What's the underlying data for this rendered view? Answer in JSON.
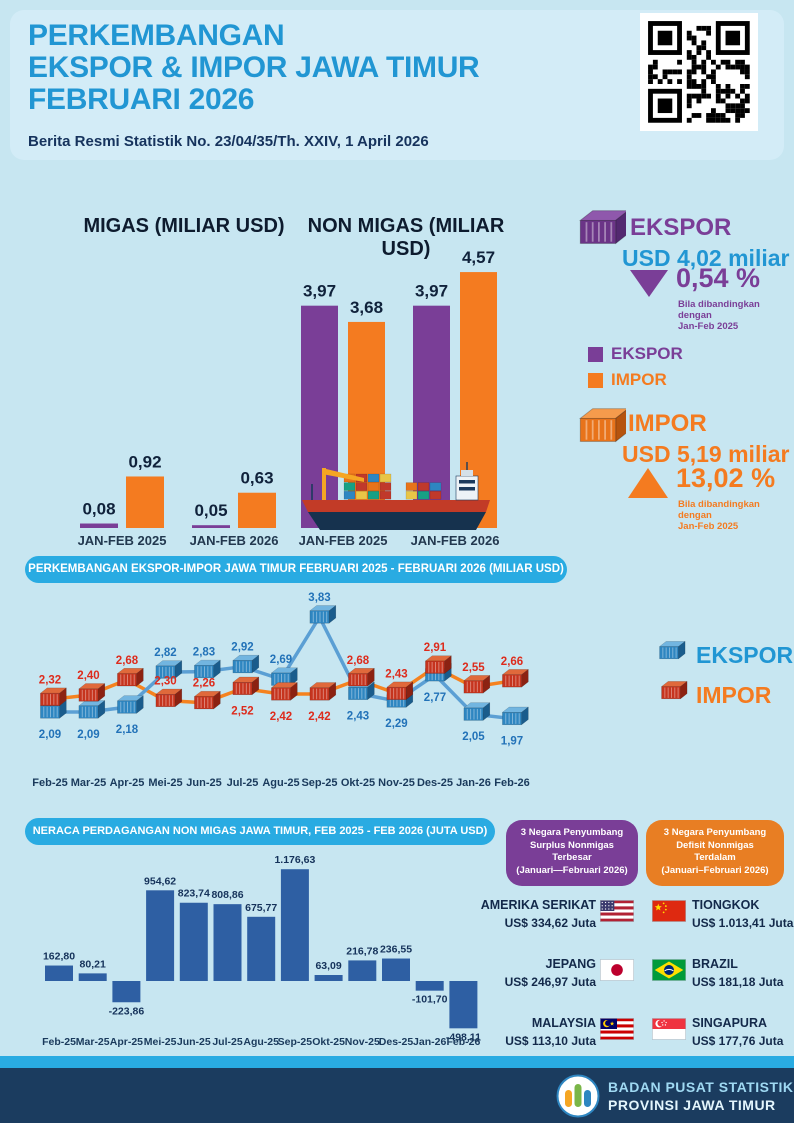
{
  "header": {
    "title_lines": [
      "PERKEMBANGAN",
      "EKSPOR & IMPOR JAWA TIMUR",
      "FEBRUARI 2026"
    ],
    "subtitle": "Berita Resmi Statistik  No. 23/04/35/Th. XXIV, 1 April 2026",
    "title_color": "#2196D3"
  },
  "summary": {
    "ekspor": {
      "label": "EKSPOR",
      "value": "USD 4,02 miliar",
      "change": "0,54 %",
      "direction": "down",
      "note_lines": [
        "Bila dibandingkan",
        "dengan",
        "Jan-Feb 2025"
      ],
      "color": "#7A3E97"
    },
    "impor": {
      "label": "IMPOR",
      "value": "USD 5,19 miliar",
      "change": "13,02 %",
      "direction": "up",
      "note_lines": [
        "Bila dibandingkan",
        "dengan",
        "Jan-Feb 2025"
      ],
      "color": "#F47B20"
    }
  },
  "legend_main": {
    "items": [
      {
        "label": "EKSPOR",
        "color": "#7A3E97"
      },
      {
        "label": "IMPOR",
        "color": "#F47B20"
      }
    ]
  },
  "chart_data": [
    {
      "id": "migas",
      "type": "bar",
      "title": "MIGAS (MILIAR USD)",
      "categories": [
        "JAN-FEB 2025",
        "JAN-FEB 2026"
      ],
      "series": [
        {
          "name": "EKSPOR",
          "color": "#7A3E97",
          "values": [
            0.08,
            0.05
          ]
        },
        {
          "name": "IMPOR",
          "color": "#F47B20",
          "values": [
            0.92,
            0.63
          ]
        }
      ],
      "ylabel": "miliar USD"
    },
    {
      "id": "nonmigas",
      "type": "bar",
      "title": "NON MIGAS (MILIAR USD)",
      "categories": [
        "JAN-FEB 2025",
        "JAN-FEB 2026"
      ],
      "series": [
        {
          "name": "EKSPOR",
          "color": "#7A3E97",
          "values": [
            3.97,
            3.97
          ]
        },
        {
          "name": "IMPOR",
          "color": "#F47B20",
          "values": [
            3.68,
            4.57
          ]
        }
      ],
      "ylabel": "miliar USD"
    },
    {
      "id": "ekspor_impor_bulanan",
      "type": "line",
      "title": "PERKEMBANGAN EKSPOR-IMPOR JAWA TIMUR FEBRUARI 2025 - FEBRUARI 2026 (MILIAR USD)",
      "categories": [
        "Feb-25",
        "Mar-25",
        "Apr-25",
        "Mei-25",
        "Jun-25",
        "Jul-25",
        "Agu-25",
        "Sep-25",
        "Okt-25",
        "Nov-25",
        "Des-25",
        "Jan-26",
        "Feb-26"
      ],
      "series": [
        {
          "name": "EKSPOR",
          "color": "#2E86C1",
          "line_color": "#5B9FD4",
          "label_color": "#2272B8",
          "values": [
            2.09,
            2.09,
            2.18,
            2.82,
            2.83,
            2.92,
            2.69,
            3.83,
            2.43,
            2.29,
            2.77,
            2.05,
            1.97
          ],
          "label_side": [
            "below",
            "below",
            "below",
            "above",
            "above",
            "above",
            "above",
            "above",
            "below",
            "below",
            "below",
            "below",
            "below"
          ]
        },
        {
          "name": "IMPOR",
          "color": "#C6341E",
          "line_color": "#F5821F",
          "label_color": "#DD2B1C",
          "values": [
            2.32,
            2.4,
            2.68,
            2.3,
            2.26,
            2.52,
            2.42,
            2.42,
            2.68,
            2.43,
            2.91,
            2.55,
            2.66
          ],
          "label_side": [
            "above",
            "above",
            "above",
            "above",
            "above",
            "below",
            "below",
            "below",
            "above",
            "above",
            "above",
            "above",
            "above"
          ]
        }
      ],
      "legend_position": "right"
    },
    {
      "id": "neraca_nonmigas",
      "type": "bar",
      "title": "NERACA PERDAGANGAN NON MIGAS JAWA TIMUR, FEB 2025 - FEB 2026 (JUTA USD)",
      "categories": [
        "Feb-25",
        "Mar-25",
        "Apr-25",
        "Mei-25",
        "Jun-25",
        "Jul-25",
        "Agu-25",
        "Sep-25",
        "Okt-25",
        "Nov-25",
        "Des-25",
        "Jan-26",
        "Feb-26"
      ],
      "values": [
        162.8,
        80.21,
        -223.86,
        954.62,
        823.74,
        808.86,
        675.77,
        1176.63,
        63.09,
        216.78,
        236.55,
        -101.7,
        -498.11
      ],
      "bar_color": "#2E5FA3"
    }
  ],
  "countries": {
    "surplus": {
      "title_lines": [
        "3 Negara Penyumbang",
        "Surplus Nonmigas",
        "Terbesar",
        "(Januari—Februari 2026)"
      ],
      "color": "#7A3E97",
      "items": [
        {
          "name": "AMERIKA SERIKAT",
          "value": "US$ 334,62 Juta",
          "flag": "us"
        },
        {
          "name": "JEPANG",
          "value": "US$ 246,97 Juta",
          "flag": "jp"
        },
        {
          "name": "MALAYSIA",
          "value": "US$ 113,10 Juta",
          "flag": "my"
        }
      ]
    },
    "defisit": {
      "title_lines": [
        "3 Negara Penyumbang",
        "Defisit Nonmigas",
        "Terdalam",
        "(Januari–Februari 2026)"
      ],
      "color": "#E87E23",
      "items": [
        {
          "name": "TIONGKOK",
          "value": "US$ 1.013,41 Juta",
          "flag": "cn"
        },
        {
          "name": "BRAZIL",
          "value": "US$ 181,18 Juta",
          "flag": "br"
        },
        {
          "name": "SINGAPURA",
          "value": "US$ 177,76 Juta",
          "flag": "sg"
        }
      ]
    }
  },
  "footer": {
    "line1": "BADAN PUSAT STATISTIK",
    "line2": "PROVINSI JAWA TIMUR"
  }
}
